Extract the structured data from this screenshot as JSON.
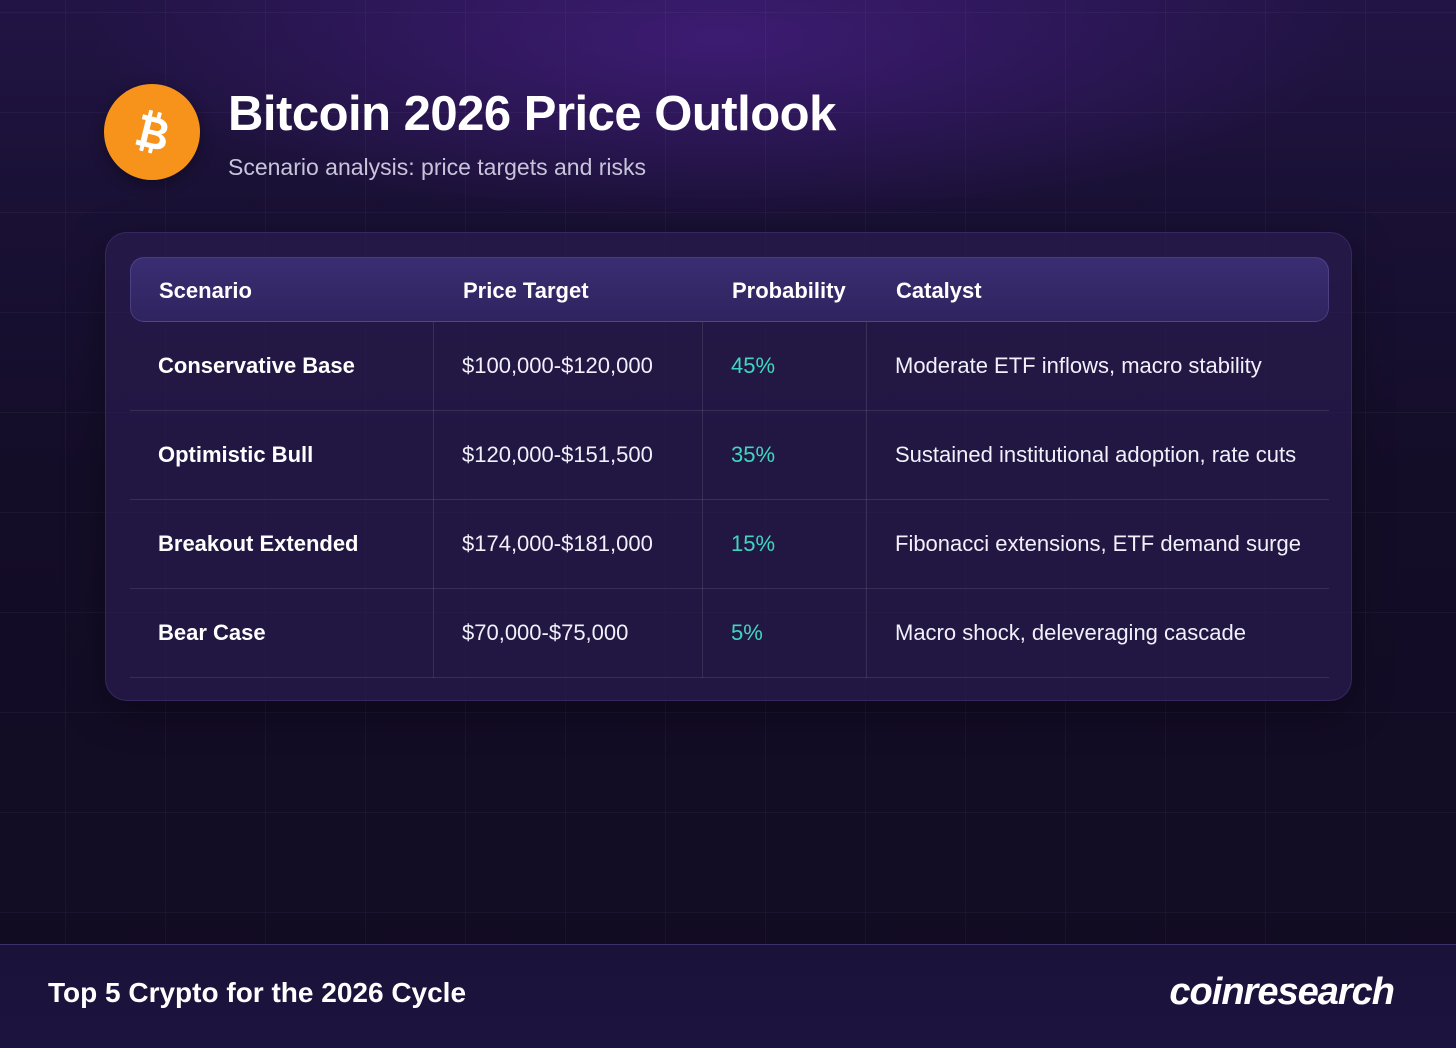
{
  "header": {
    "logo_icon": "bitcoin-icon",
    "logo_color": "#f7931a",
    "title": "Bitcoin 2026 Price Outlook",
    "subtitle": "Scenario analysis: price targets and risks"
  },
  "table": {
    "columns": [
      "Scenario",
      "Price Target",
      "Probability",
      "Catalyst"
    ],
    "rows": [
      {
        "scenario": "Conservative Base",
        "price_target": "$100,000-$120,000",
        "probability": "45%",
        "catalyst": "Moderate ETF inflows, macro stability"
      },
      {
        "scenario": "Optimistic Bull",
        "price_target": "$120,000-$151,500",
        "probability": "35%",
        "catalyst": "Sustained institutional adoption, rate cuts"
      },
      {
        "scenario": "Breakout Extended",
        "price_target": "$174,000-$181,000",
        "probability": "15%",
        "catalyst": "Fibonacci extensions, ETF demand surge"
      },
      {
        "scenario": "Bear Case",
        "price_target": "$70,000-$75,000",
        "probability": "5%",
        "catalyst": "Macro shock, deleveraging cascade"
      }
    ],
    "probability_color": "#3fd6c0"
  },
  "footer": {
    "title": "Top 5 Crypto for the 2026 Cycle",
    "brand": "coinresearch"
  }
}
